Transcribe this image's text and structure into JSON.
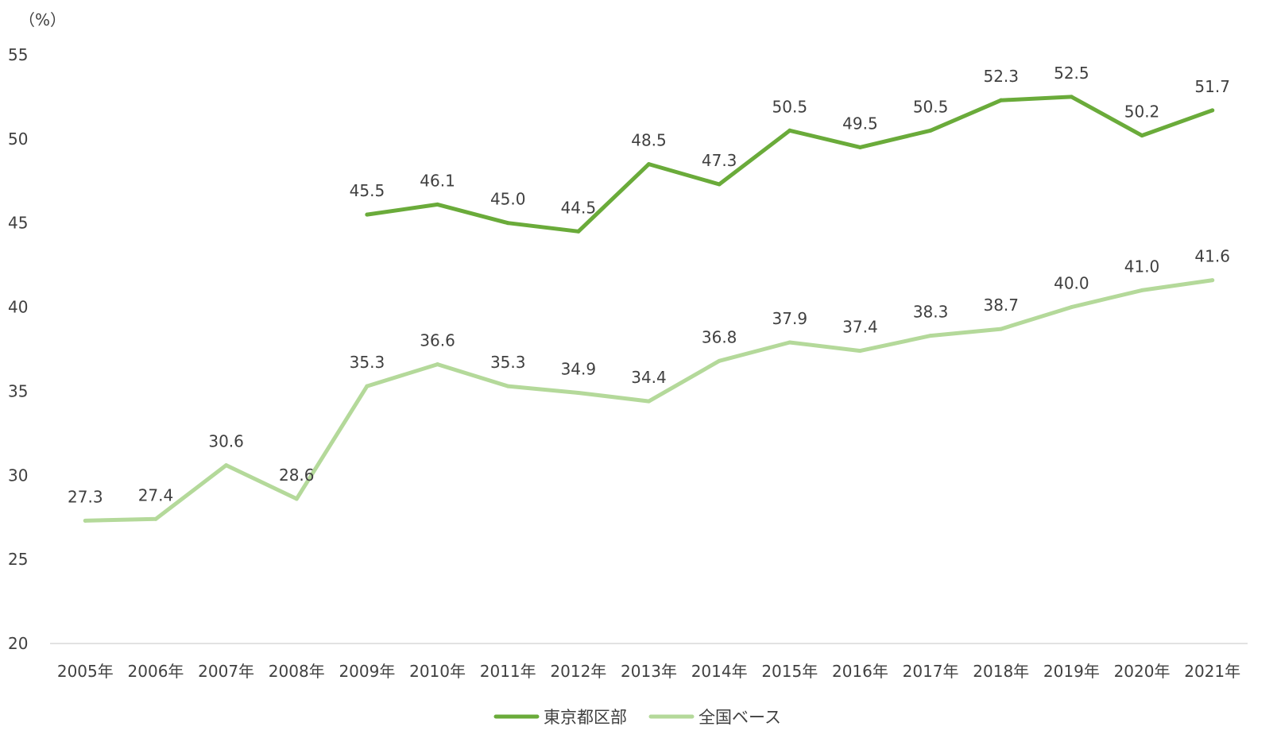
{
  "chart_data": {
    "type": "line",
    "unit_label": "（%）",
    "categories": [
      "2005年",
      "2006年",
      "2007年",
      "2008年",
      "2009年",
      "2010年",
      "2011年",
      "2012年",
      "2013年",
      "2014年",
      "2015年",
      "2016年",
      "2017年",
      "2018年",
      "2019年",
      "2020年",
      "2021年"
    ],
    "series": [
      {
        "name": "東京都区部",
        "color": "#6aab3a",
        "values": [
          null,
          null,
          null,
          null,
          45.5,
          46.1,
          45.0,
          44.5,
          48.5,
          47.3,
          50.5,
          49.5,
          50.5,
          52.3,
          52.5,
          50.2,
          51.7
        ],
        "labels": [
          "",
          "",
          "",
          "",
          "45.5",
          "46.1",
          "45.0",
          "44.5",
          "48.5",
          "47.3",
          "50.5",
          "49.5",
          "50.5",
          "52.3",
          "52.5",
          "50.2",
          "51.7"
        ]
      },
      {
        "name": "全国ベース",
        "color": "#b4d99a",
        "values": [
          27.3,
          27.4,
          30.6,
          28.6,
          35.3,
          36.6,
          35.3,
          34.9,
          34.4,
          36.8,
          37.9,
          37.4,
          38.3,
          38.7,
          40.0,
          41.0,
          41.6
        ],
        "labels": [
          "27.3",
          "27.4",
          "30.6",
          "28.6",
          "35.3",
          "36.6",
          "35.3",
          "34.9",
          "34.4",
          "36.8",
          "37.9",
          "37.4",
          "38.3",
          "38.7",
          "40.0",
          "41.0",
          "41.6"
        ]
      }
    ],
    "ylim": [
      20,
      55
    ],
    "yticks": [
      "20",
      "25",
      "30",
      "35",
      "40",
      "45",
      "50",
      "55"
    ],
    "grid": false,
    "legend": "bottom"
  }
}
